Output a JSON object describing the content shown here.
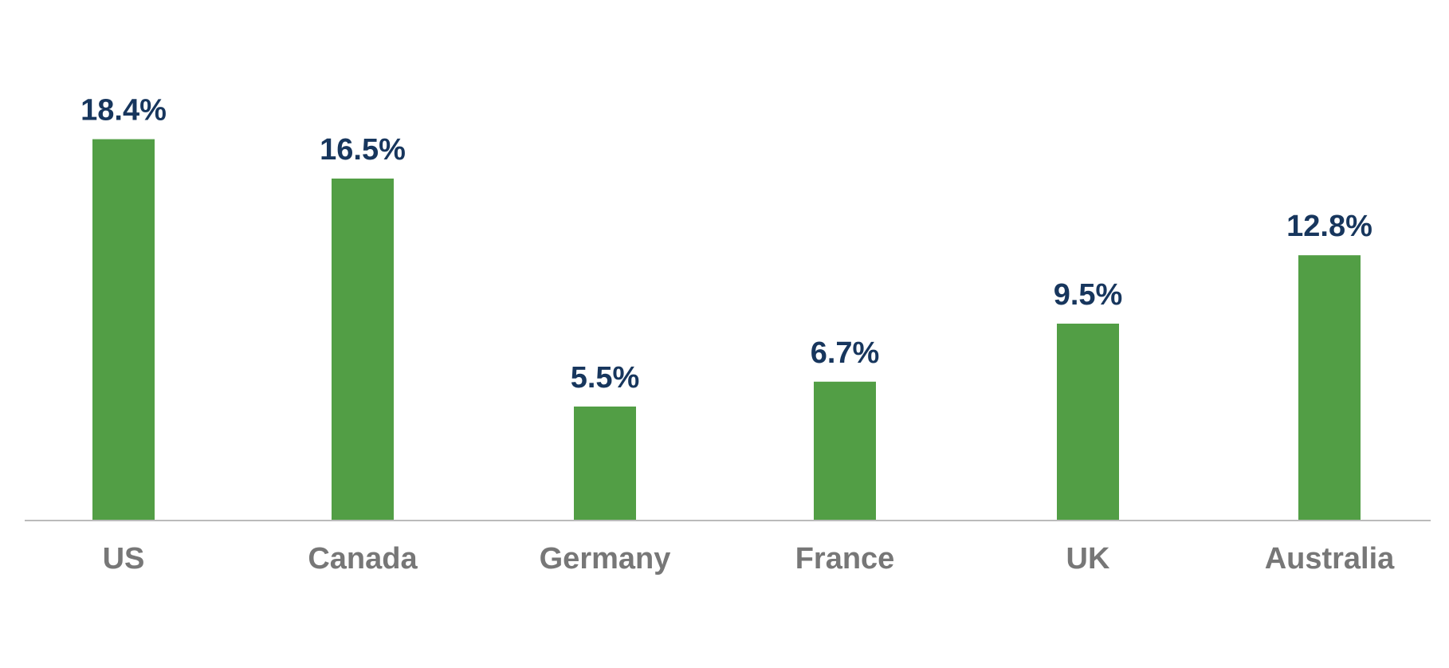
{
  "chart_data": {
    "type": "bar",
    "title": "",
    "xlabel": "",
    "ylabel": "",
    "categories": [
      "US",
      "Canada",
      "Germany",
      "France",
      "UK",
      "Australia"
    ],
    "values": [
      18.4,
      16.5,
      5.5,
      6.7,
      9.5,
      12.8
    ],
    "value_labels": [
      "18.4%",
      "16.5%",
      "5.5%",
      "6.7%",
      "9.5%",
      "12.8%"
    ],
    "ylim": [
      0,
      20
    ],
    "grid": false,
    "legend": "none",
    "colors": {
      "bar": "#529E45",
      "value_label": "#17365D",
      "category_label": "#777777",
      "axis": "#BBBBBB"
    }
  }
}
